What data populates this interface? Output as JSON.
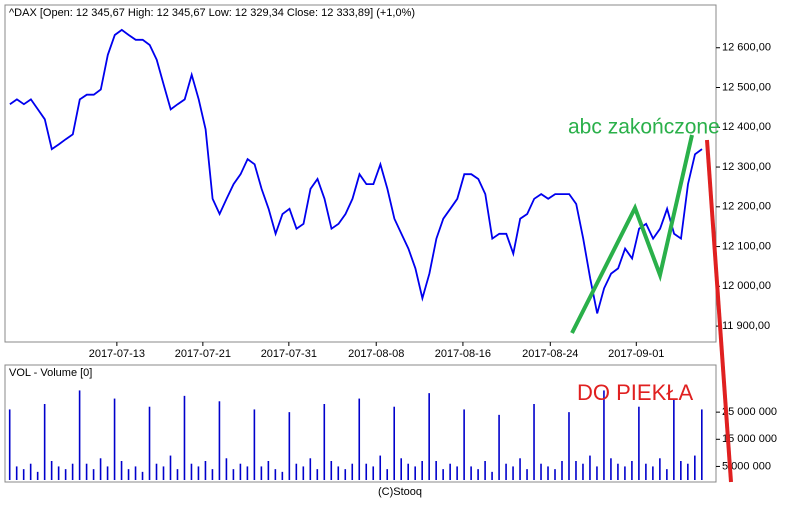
{
  "chart_data": [
    {
      "type": "line",
      "title": "^DAX [Open: 12 345,67 High: 12 345,67 Low: 12 329,34 Close: 12 333,89] (+1,0%)",
      "color": "#0000ee",
      "values": [
        12458,
        12470,
        12458,
        12470,
        12445,
        12420,
        12345,
        12357,
        12370,
        12382,
        12470,
        12482,
        12482,
        12495,
        12582,
        12632,
        12645,
        12632,
        12620,
        12620,
        12607,
        12570,
        12507,
        12445,
        12458,
        12470,
        12532,
        12470,
        12395,
        12220,
        12182,
        12220,
        12257,
        12282,
        12320,
        12307,
        12245,
        12195,
        12132,
        12182,
        12195,
        12145,
        12157,
        12245,
        12270,
        12220,
        12145,
        12157,
        12182,
        12220,
        12282,
        12257,
        12257,
        12307,
        12245,
        12170,
        12132,
        12095,
        12045,
        11970,
        12032,
        12120,
        12170,
        12195,
        12220,
        12282,
        12282,
        12270,
        12232,
        12120,
        12132,
        12132,
        12082,
        12170,
        12182,
        12220,
        12232,
        12220,
        12232,
        12232,
        12232,
        12207,
        12120,
        12020,
        11932,
        11995,
        12032,
        12045,
        12095,
        12070,
        12145,
        12157,
        12120,
        12145,
        12195,
        12132,
        12120,
        12257,
        12332,
        12345
      ],
      "xlim": [
        -0.7,
        101
      ],
      "xticks": [
        {
          "value": 15.3,
          "label": "2017-07-13"
        },
        {
          "value": 27.6,
          "label": "2017-07-21"
        },
        {
          "value": 39.9,
          "label": "2017-07-31"
        },
        {
          "value": 52.4,
          "label": "2017-08-08"
        },
        {
          "value": 64.8,
          "label": "2017-08-16"
        },
        {
          "value": 77.3,
          "label": "2017-08-24"
        },
        {
          "value": 89.6,
          "label": "2017-09-01"
        }
      ],
      "ylim": [
        11860,
        12707.5
      ],
      "yticks": [
        {
          "value": 11900,
          "label": "11 900,00"
        },
        {
          "value": 12000,
          "label": "12 000,00"
        },
        {
          "value": 12100,
          "label": "12 100,00"
        },
        {
          "value": 12200,
          "label": "12 200,00"
        },
        {
          "value": 12300,
          "label": "12 300,00"
        },
        {
          "value": 12400,
          "label": "12 400,00"
        },
        {
          "value": 12500,
          "label": "12 500,00"
        },
        {
          "value": 12600,
          "label": "12 600,00"
        }
      ],
      "annotations": [
        "abc zakończone",
        "DO PIEKŁA"
      ]
    },
    {
      "type": "bar",
      "title": "VOL - Volume [0]",
      "color": "#0000cc",
      "values": [
        26000000,
        5000000,
        4000000,
        6000000,
        3000000,
        28000000,
        7000000,
        5000000,
        4000000,
        6000000,
        33000000,
        6000000,
        4000000,
        8000000,
        5000000,
        30000000,
        7000000,
        4000000,
        5000000,
        3000000,
        27000000,
        6000000,
        5000000,
        9000000,
        4000000,
        31000000,
        6000000,
        5000000,
        7000000,
        4000000,
        29000000,
        8000000,
        4000000,
        6000000,
        5000000,
        26000000,
        5000000,
        7000000,
        4000000,
        3000000,
        25000000,
        6000000,
        5000000,
        8000000,
        4000000,
        28000000,
        7000000,
        5000000,
        4000000,
        6000000,
        30000000,
        6000000,
        5000000,
        9000000,
        4000000,
        27000000,
        8000000,
        6000000,
        5000000,
        7000000,
        32000000,
        7000000,
        4000000,
        6000000,
        5000000,
        26000000,
        5000000,
        4000000,
        7000000,
        3000000,
        24000000,
        6000000,
        5000000,
        8000000,
        4000000,
        28000000,
        6000000,
        5000000,
        4000000,
        7000000,
        25000000,
        7000000,
        6000000,
        9000000,
        5000000,
        33000000,
        8000000,
        6000000,
        5000000,
        7000000,
        27000000,
        6000000,
        5000000,
        8000000,
        4000000,
        30000000,
        7000000,
        6000000,
        9000000,
        26000000
      ],
      "xlim": [
        -0.7,
        101
      ],
      "ylim": [
        0,
        42000000
      ],
      "yticks": [
        {
          "value": 5000000,
          "label": "5 000 000"
        },
        {
          "value": 15000000,
          "label": "15 000 000"
        },
        {
          "value": 25000000,
          "label": "25 000 000"
        }
      ]
    }
  ],
  "footer": "(C)Stooq"
}
